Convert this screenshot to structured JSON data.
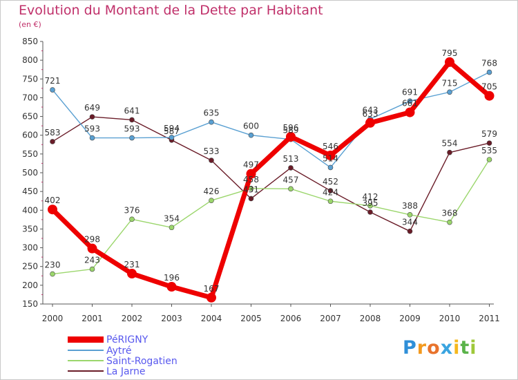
{
  "title": "Evolution du Montant de la Dette par Habitant",
  "subtitle": "(en €)",
  "brand": {
    "text": "Proxiti",
    "letters": [
      "P",
      "r",
      "o",
      "x",
      "i",
      "t",
      "i"
    ],
    "colors": [
      "#2f8fd8",
      "#f39a1f",
      "#e8732c",
      "#3aa4e0",
      "#f5b81f",
      "#5ab34a",
      "#9fc83a"
    ]
  },
  "chart_data": {
    "type": "line",
    "x": [
      "2000",
      "2001",
      "2002",
      "2003",
      "2004",
      "2005",
      "2006",
      "2007",
      "2008",
      "2009",
      "2010",
      "2011"
    ],
    "ylim": [
      150,
      850
    ],
    "yticks": [
      150,
      200,
      250,
      300,
      350,
      400,
      450,
      500,
      550,
      600,
      650,
      700,
      750,
      800,
      850
    ],
    "grid": false,
    "legend": "bottom-left",
    "series": [
      {
        "name": "La Jarne",
        "color": "#6a1c28",
        "values": [
          583,
          649,
          641,
          587,
          533,
          431,
          513,
          452,
          395,
          344,
          554,
          579
        ],
        "labels": [
          "583",
          "649",
          "641",
          "587",
          "533",
          "431",
          "513",
          "452",
          "395",
          "344",
          "554",
          "579"
        ]
      },
      {
        "name": "Saint-Rogatien",
        "color": "#9bd66c",
        "values": [
          230,
          243,
          376,
          354,
          426,
          458,
          457,
          424,
          412,
          388,
          368,
          535
        ],
        "labels": [
          "230",
          "243",
          "376",
          "354",
          "426",
          "458",
          "457",
          "424",
          "412",
          "388",
          "368",
          "535"
        ]
      },
      {
        "name": "Aytré",
        "color": "#5aa0d2",
        "values": [
          721,
          593,
          593,
          594,
          635,
          600,
          589,
          514,
          643,
          691,
          715,
          768
        ],
        "labels": [
          "721",
          "593",
          "593",
          "594",
          "635",
          "600",
          "589",
          "514",
          "643",
          "691",
          "715",
          "768"
        ]
      },
      {
        "name": "PéRIGNY",
        "color": "#ee0000",
        "values": [
          402,
          298,
          231,
          196,
          167,
          497,
          596,
          546,
          633,
          661,
          795,
          705
        ],
        "labels": [
          "402",
          "298",
          "231",
          "196",
          "167",
          "497",
          "596",
          "546",
          "633",
          "661",
          "795",
          "705"
        ]
      }
    ]
  },
  "legend": [
    {
      "name": "PéRIGNY",
      "color": "#ee0000"
    },
    {
      "name": "Aytré",
      "color": "#5aa0d2"
    },
    {
      "name": "Saint-Rogatien",
      "color": "#9bd66c"
    },
    {
      "name": "La Jarne",
      "color": "#6a1c28"
    }
  ]
}
